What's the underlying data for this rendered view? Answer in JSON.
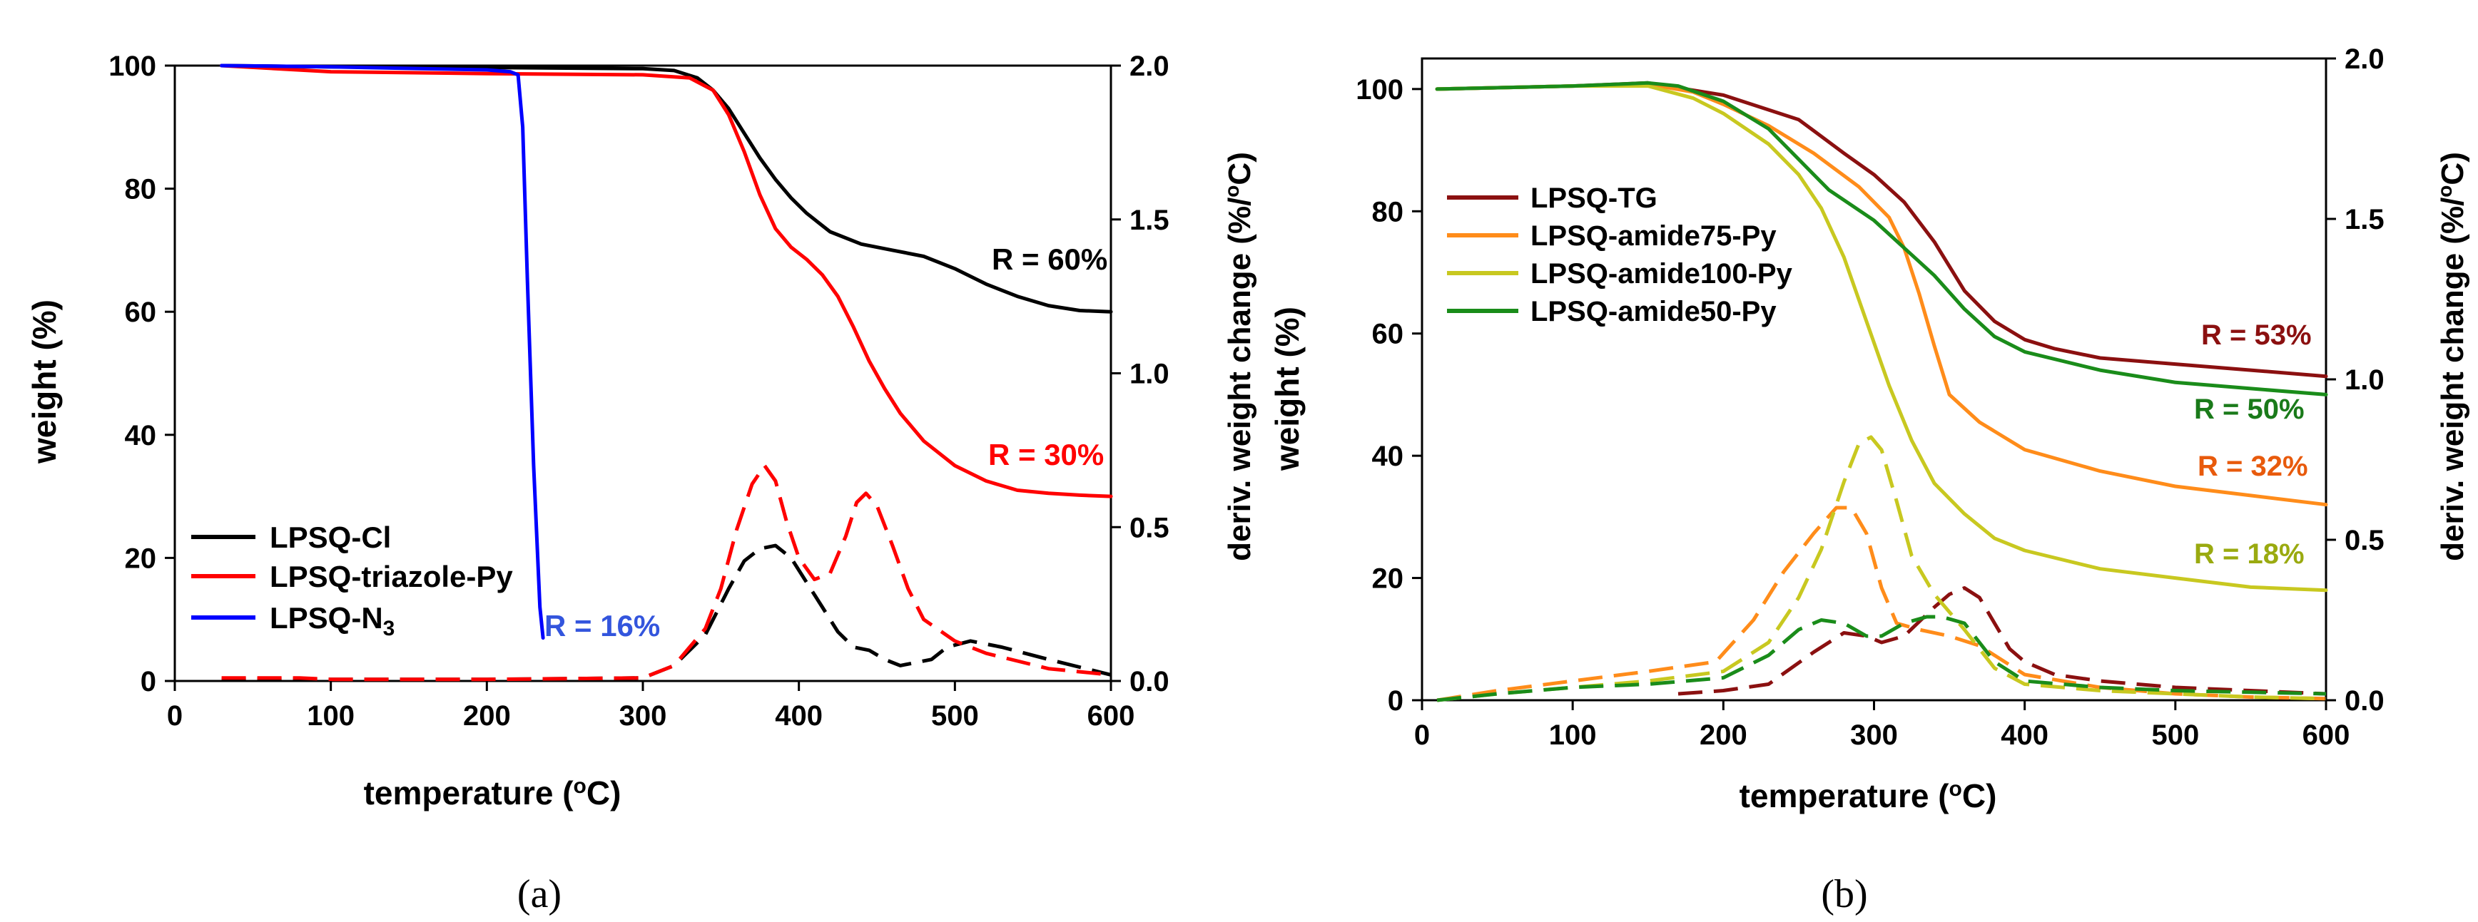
{
  "figure": {
    "captions": [
      "(a)",
      "(b)"
    ]
  },
  "chart_data": [
    {
      "type": "line",
      "panel": "(a)",
      "xlabel": "temperature (°C)",
      "xlabel_parts": [
        "temperature (",
        "o",
        "C)"
      ],
      "ylabel": "weight (%)",
      "y2label": "deriv. weight change (%/°C)",
      "y2label_parts": [
        "deriv. weight change (%/",
        "o",
        "C)"
      ],
      "xlim": [
        0,
        600
      ],
      "ylim": [
        0,
        100
      ],
      "y2lim": [
        0,
        2.0
      ],
      "xticks": [
        0,
        100,
        200,
        300,
        400,
        500,
        600
      ],
      "yticks": [
        0,
        20,
        40,
        60,
        80,
        100
      ],
      "y2ticks": [
        "0.0",
        "0.5",
        "1.0",
        "1.5",
        "2.0"
      ],
      "legend_position": "bottom-left",
      "series": [
        {
          "name": "LPSQ-Cl",
          "legend": "LPSQ-Cl",
          "color": "#000000",
          "axis": "left",
          "dash": false,
          "x": [
            30,
            100,
            200,
            300,
            320,
            335,
            345,
            355,
            365,
            375,
            385,
            395,
            405,
            420,
            440,
            460,
            480,
            500,
            520,
            540,
            560,
            580,
            600
          ],
          "y": [
            100,
            99.8,
            99.7,
            99.5,
            99.2,
            98,
            96,
            93,
            89,
            85,
            81.5,
            78.5,
            76,
            73,
            71,
            70,
            69,
            67,
            64.5,
            62.5,
            61,
            60.2,
            60
          ]
        },
        {
          "name": "LPSQ-triazole-Py",
          "legend": "LPSQ-triazole-Py",
          "color": "#ff0000",
          "axis": "left",
          "dash": false,
          "x": [
            30,
            100,
            200,
            300,
            330,
            345,
            355,
            365,
            375,
            385,
            395,
            405,
            415,
            425,
            435,
            445,
            455,
            465,
            480,
            500,
            520,
            540,
            560,
            580,
            600
          ],
          "y": [
            100,
            99,
            98.7,
            98.5,
            98,
            96,
            92,
            86,
            79,
            73.5,
            70.5,
            68.5,
            66,
            62.5,
            57.5,
            52,
            47.5,
            43.5,
            39,
            35,
            32.5,
            31,
            30.5,
            30.2,
            30
          ]
        },
        {
          "name": "LPSQ-N3",
          "legend_parts": [
            "LPSQ-N",
            "3"
          ],
          "color": "#0000ff",
          "axis": "left",
          "dash": false,
          "x": [
            30,
            100,
            200,
            215,
            220,
            223,
            226,
            230,
            234,
            236
          ],
          "y": [
            100,
            99.8,
            99.3,
            99,
            98.5,
            90,
            65,
            35,
            12,
            7
          ]
        },
        {
          "name": "LPSQ-Cl (DTG)",
          "color": "#000000",
          "axis": "right",
          "dash": true,
          "x": [
            30,
            100,
            200,
            300,
            320,
            340,
            355,
            365,
            375,
            385,
            395,
            405,
            415,
            425,
            435,
            445,
            455,
            465,
            475,
            485,
            495,
            510,
            530,
            560,
            600
          ],
          "y": [
            0.005,
            0.005,
            0.005,
            0.01,
            0.05,
            0.15,
            0.3,
            0.39,
            0.43,
            0.44,
            0.4,
            0.32,
            0.24,
            0.16,
            0.11,
            0.1,
            0.07,
            0.05,
            0.06,
            0.07,
            0.11,
            0.13,
            0.11,
            0.07,
            0.02
          ]
        },
        {
          "name": "LPSQ-triazole-Py (DTG)",
          "color": "#ff0000",
          "axis": "right",
          "dash": true,
          "x": [
            30,
            80,
            100,
            200,
            300,
            320,
            340,
            350,
            360,
            370,
            378,
            385,
            392,
            400,
            410,
            420,
            430,
            437,
            443,
            450,
            460,
            470,
            480,
            500,
            520,
            560,
            600
          ],
          "y": [
            0.01,
            0.01,
            0.005,
            0.005,
            0.01,
            0.05,
            0.17,
            0.3,
            0.49,
            0.64,
            0.7,
            0.65,
            0.52,
            0.4,
            0.33,
            0.35,
            0.47,
            0.58,
            0.61,
            0.57,
            0.44,
            0.3,
            0.2,
            0.13,
            0.09,
            0.04,
            0.02
          ]
        }
      ],
      "annotations": [
        {
          "text": "R = 60%",
          "color": "#000000"
        },
        {
          "text": "R = 30%",
          "color": "#ff0000"
        },
        {
          "text": "R = 16%",
          "color": "#3355dd"
        }
      ]
    },
    {
      "type": "line",
      "panel": "(b)",
      "xlabel": "temperature (°C)",
      "xlabel_parts": [
        "temperature (",
        "o",
        "C)"
      ],
      "ylabel": "weight (%)",
      "y2label": "deriv. weight change (%/°C)",
      "y2label_parts": [
        "deriv. weight change (%/",
        "o",
        "C)"
      ],
      "xlim": [
        0,
        600
      ],
      "ylim": [
        0,
        105
      ],
      "y2lim": [
        0,
        2.0
      ],
      "xticks": [
        0,
        100,
        200,
        300,
        400,
        500,
        600
      ],
      "yticks": [
        0,
        20,
        40,
        60,
        80,
        100
      ],
      "y2ticks": [
        "0.0",
        "0.5",
        "1.0",
        "1.5",
        "2.0"
      ],
      "legend_position": "top-left",
      "series": [
        {
          "name": "LPSQ-TG",
          "legend": "LPSQ-TG",
          "color": "#8b1010",
          "axis": "left",
          "dash": false,
          "x": [
            10,
            100,
            150,
            200,
            250,
            280,
            300,
            320,
            340,
            360,
            380,
            400,
            420,
            450,
            500,
            550,
            600
          ],
          "y": [
            100,
            100.5,
            101,
            99,
            95,
            89.5,
            86,
            81.5,
            75,
            67,
            62,
            59,
            57.5,
            56,
            55,
            54,
            53
          ]
        },
        {
          "name": "LPSQ-amide75-Py",
          "legend": "LPSQ-amide75-Py",
          "color": "#ff8c1a",
          "axis": "left",
          "dash": false,
          "x": [
            10,
            100,
            150,
            180,
            200,
            230,
            260,
            290,
            310,
            320,
            330,
            340,
            350,
            370,
            400,
            450,
            500,
            550,
            600
          ],
          "y": [
            100,
            100.5,
            100.8,
            99.5,
            97.5,
            94,
            89.5,
            84,
            79,
            74,
            66.5,
            58,
            50,
            45.5,
            41,
            37.5,
            35,
            33.5,
            32
          ]
        },
        {
          "name": "LPSQ-amide100-Py",
          "legend": "LPSQ-amide100-Py",
          "color": "#c8c820",
          "axis": "left",
          "dash": false,
          "x": [
            10,
            100,
            150,
            180,
            200,
            230,
            250,
            265,
            280,
            295,
            310,
            325,
            340,
            360,
            380,
            400,
            450,
            500,
            550,
            600
          ],
          "y": [
            100,
            100.5,
            100.5,
            98.5,
            96,
            91,
            86,
            80.5,
            72.5,
            62,
            51.5,
            42.5,
            35.5,
            30.5,
            26.5,
            24.5,
            21.5,
            20,
            18.5,
            18
          ]
        },
        {
          "name": "LPSQ-amide50-Py",
          "legend": "LPSQ-amide50-Py",
          "color": "#1a8c1a",
          "axis": "left",
          "dash": false,
          "x": [
            10,
            100,
            150,
            170,
            200,
            230,
            250,
            270,
            300,
            320,
            340,
            360,
            380,
            400,
            450,
            500,
            550,
            600
          ],
          "y": [
            100,
            100.5,
            101,
            100.5,
            98,
            93.5,
            88.5,
            83.5,
            78.5,
            74,
            69.5,
            64,
            59.5,
            57,
            54,
            52,
            51,
            50
          ]
        },
        {
          "name": "LPSQ-TG (DTG)",
          "color": "#8b1010",
          "axis": "right",
          "dash": true,
          "x": [
            170,
            200,
            230,
            260,
            280,
            295,
            305,
            320,
            340,
            350,
            360,
            370,
            380,
            390,
            400,
            420,
            450,
            500,
            550,
            600
          ],
          "y": [
            0.02,
            0.03,
            0.05,
            0.15,
            0.21,
            0.2,
            0.18,
            0.2,
            0.29,
            0.33,
            0.35,
            0.32,
            0.24,
            0.16,
            0.12,
            0.08,
            0.06,
            0.04,
            0.03,
            0.02
          ]
        },
        {
          "name": "LPSQ-amide75-Py (DTG)",
          "color": "#ff8c1a",
          "axis": "right",
          "dash": true,
          "x": [
            10,
            50,
            100,
            150,
            195,
            220,
            240,
            260,
            275,
            285,
            295,
            305,
            315,
            330,
            350,
            370,
            400,
            450,
            500,
            550,
            600
          ],
          "y": [
            0,
            0.03,
            0.06,
            0.09,
            0.12,
            0.25,
            0.4,
            0.52,
            0.6,
            0.6,
            0.52,
            0.35,
            0.24,
            0.22,
            0.2,
            0.17,
            0.08,
            0.04,
            0.02,
            0.01,
            0.005
          ]
        },
        {
          "name": "LPSQ-amide100-Py (DTG)",
          "color": "#c8c820",
          "axis": "right",
          "dash": true,
          "x": [
            10,
            50,
            100,
            150,
            200,
            230,
            250,
            265,
            280,
            290,
            298,
            305,
            315,
            325,
            340,
            360,
            380,
            400,
            450,
            500,
            550,
            600
          ],
          "y": [
            0,
            0.02,
            0.04,
            0.06,
            0.09,
            0.18,
            0.32,
            0.47,
            0.68,
            0.8,
            0.82,
            0.78,
            0.62,
            0.45,
            0.33,
            0.22,
            0.1,
            0.05,
            0.03,
            0.02,
            0.01,
            0.005
          ]
        },
        {
          "name": "LPSQ-amide50-Py (DTG)",
          "color": "#1a8c1a",
          "axis": "right",
          "dash": true,
          "x": [
            10,
            50,
            100,
            150,
            200,
            230,
            250,
            265,
            280,
            295,
            305,
            320,
            335,
            345,
            360,
            380,
            400,
            450,
            500,
            550,
            600
          ],
          "y": [
            0,
            0.02,
            0.04,
            0.05,
            0.07,
            0.14,
            0.22,
            0.25,
            0.24,
            0.2,
            0.2,
            0.24,
            0.26,
            0.26,
            0.24,
            0.12,
            0.06,
            0.04,
            0.03,
            0.025,
            0.02
          ]
        }
      ],
      "annotations": [
        {
          "text": "R = 53%",
          "color": "#8b1010"
        },
        {
          "text": "R = 50%",
          "color": "#1a7a1a"
        },
        {
          "text": "R = 32%",
          "color": "#e85a0c"
        },
        {
          "text": "R = 18%",
          "color": "#9aaa10"
        }
      ]
    }
  ]
}
